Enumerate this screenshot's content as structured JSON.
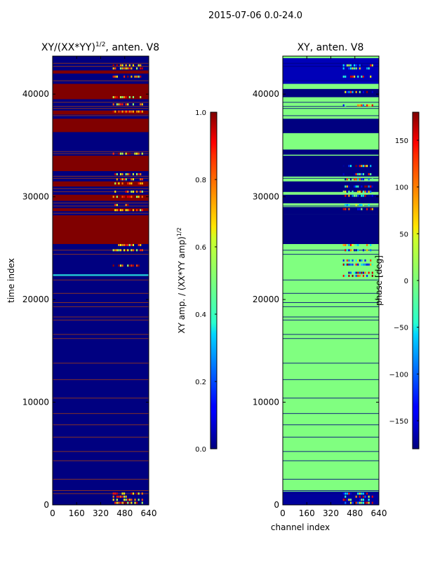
{
  "suptitle": "2015-07-06 0.0-24.0",
  "chart_data": [
    {
      "type": "heatmap",
      "title": "XY/(XX*YY)",
      "title_superscript": "1/2",
      "title_suffix": ", anten. V8",
      "xlabel": "",
      "ylabel": "time index",
      "xlim": [
        0,
        640
      ],
      "ylim": [
        0,
        43700
      ],
      "xticks": [
        "0",
        "160",
        "320",
        "480",
        "640"
      ],
      "yticks": [
        "0",
        "10000",
        "20000",
        "30000",
        "40000"
      ],
      "colorbar": {
        "label": "XY amp. / (XX*YY amp)",
        "label_superscript": "1/2",
        "range": [
          0.0,
          1.0
        ],
        "ticks": [
          "0.0",
          "0.2",
          "0.4",
          "0.6",
          "0.8",
          "1.0"
        ],
        "colormap": "jet"
      },
      "background_value": 0.0,
      "bands": [
        {
          "y0": 36300,
          "y1": 37600,
          "v": 1.0
        },
        {
          "y0": 38000,
          "y1": 38400,
          "v": 1.0
        },
        {
          "y0": 39500,
          "y1": 41000,
          "v": 1.0
        },
        {
          "y0": 42000,
          "y1": 42300,
          "v": 1.0
        },
        {
          "y0": 32500,
          "y1": 34000,
          "v": 1.0
        },
        {
          "y0": 31000,
          "y1": 31500,
          "v": 1.0
        },
        {
          "y0": 29600,
          "y1": 30200,
          "v": 1.0
        },
        {
          "y0": 25400,
          "y1": 28200,
          "v": 1.0
        },
        {
          "y0": 28600,
          "y1": 28900,
          "v": 1.0
        },
        {
          "y0": 22300,
          "y1": 22450,
          "v": 0.45
        },
        {
          "y0": 22350,
          "y1": 22420,
          "v": 0.3
        }
      ],
      "stripes": [
        43000,
        42700,
        41300,
        39200,
        38800,
        38600,
        37900,
        34400,
        34200,
        32000,
        31800,
        30800,
        30500,
        29400,
        29100,
        28400,
        24800,
        24400,
        21900,
        20600,
        19700,
        19300,
        18300,
        18000,
        16600,
        16200,
        13800,
        12200,
        10400,
        8900,
        7800,
        6600,
        5200,
        4300,
        2500,
        1400,
        1100
      ],
      "speckle_rows": [
        42800,
        42500,
        41700,
        39700,
        39000,
        38300,
        34200,
        32200,
        31700,
        31300,
        30500,
        30000,
        29200,
        28700,
        25300,
        24800,
        23300,
        1100,
        800,
        500,
        200
      ]
    },
    {
      "type": "heatmap",
      "title": "XY, anten. V8",
      "xlabel": "channel index",
      "ylabel": "",
      "xlim": [
        0,
        640
      ],
      "ylim": [
        0,
        43700
      ],
      "xticks": [
        "0",
        "160",
        "320",
        "480",
        "640"
      ],
      "yticks": [
        "0",
        "10000",
        "20000",
        "30000",
        "40000"
      ],
      "colorbar": {
        "label": "phase [deg]",
        "range": [
          -180,
          180
        ],
        "ticks": [
          "150",
          "100",
          "50",
          "0",
          "−50",
          "−100",
          "−150"
        ],
        "colormap": "jet"
      },
      "background_value": 0.0,
      "bands": [
        {
          "y0": 28300,
          "y1": 29000,
          "v": -180
        },
        {
          "y0": 29400,
          "y1": 30200,
          "v": -180
        },
        {
          "y0": 30500,
          "y1": 31500,
          "v": -180
        },
        {
          "y0": 25400,
          "y1": 28300,
          "v": -180
        },
        {
          "y0": 32000,
          "y1": 34000,
          "v": -180
        },
        {
          "y0": 34100,
          "y1": 34600,
          "v": -180
        },
        {
          "y0": 36200,
          "y1": 37600,
          "v": -180
        },
        {
          "y0": 39700,
          "y1": 40500,
          "v": -180
        },
        {
          "y0": 41000,
          "y1": 43500,
          "v": -160
        },
        {
          "y0": 0,
          "y1": 1300,
          "v": -170
        }
      ],
      "stripes": [
        43000,
        42700,
        41300,
        39200,
        38800,
        38600,
        37900,
        34400,
        34200,
        32000,
        31800,
        30800,
        30500,
        29400,
        29100,
        28400,
        24800,
        24400,
        21900,
        20600,
        19700,
        19300,
        18300,
        18000,
        16600,
        16200,
        13800,
        12200,
        10400,
        8900,
        7800,
        6600,
        5200,
        4300,
        2500,
        1400,
        1100
      ],
      "speckle_rows": [
        42800,
        42500,
        41700,
        40200,
        38900,
        33000,
        32200,
        31700,
        31000,
        30500,
        30100,
        29200,
        28800,
        25300,
        24800,
        23800,
        23400,
        22600,
        22300,
        1100,
        800,
        500,
        200
      ]
    }
  ]
}
